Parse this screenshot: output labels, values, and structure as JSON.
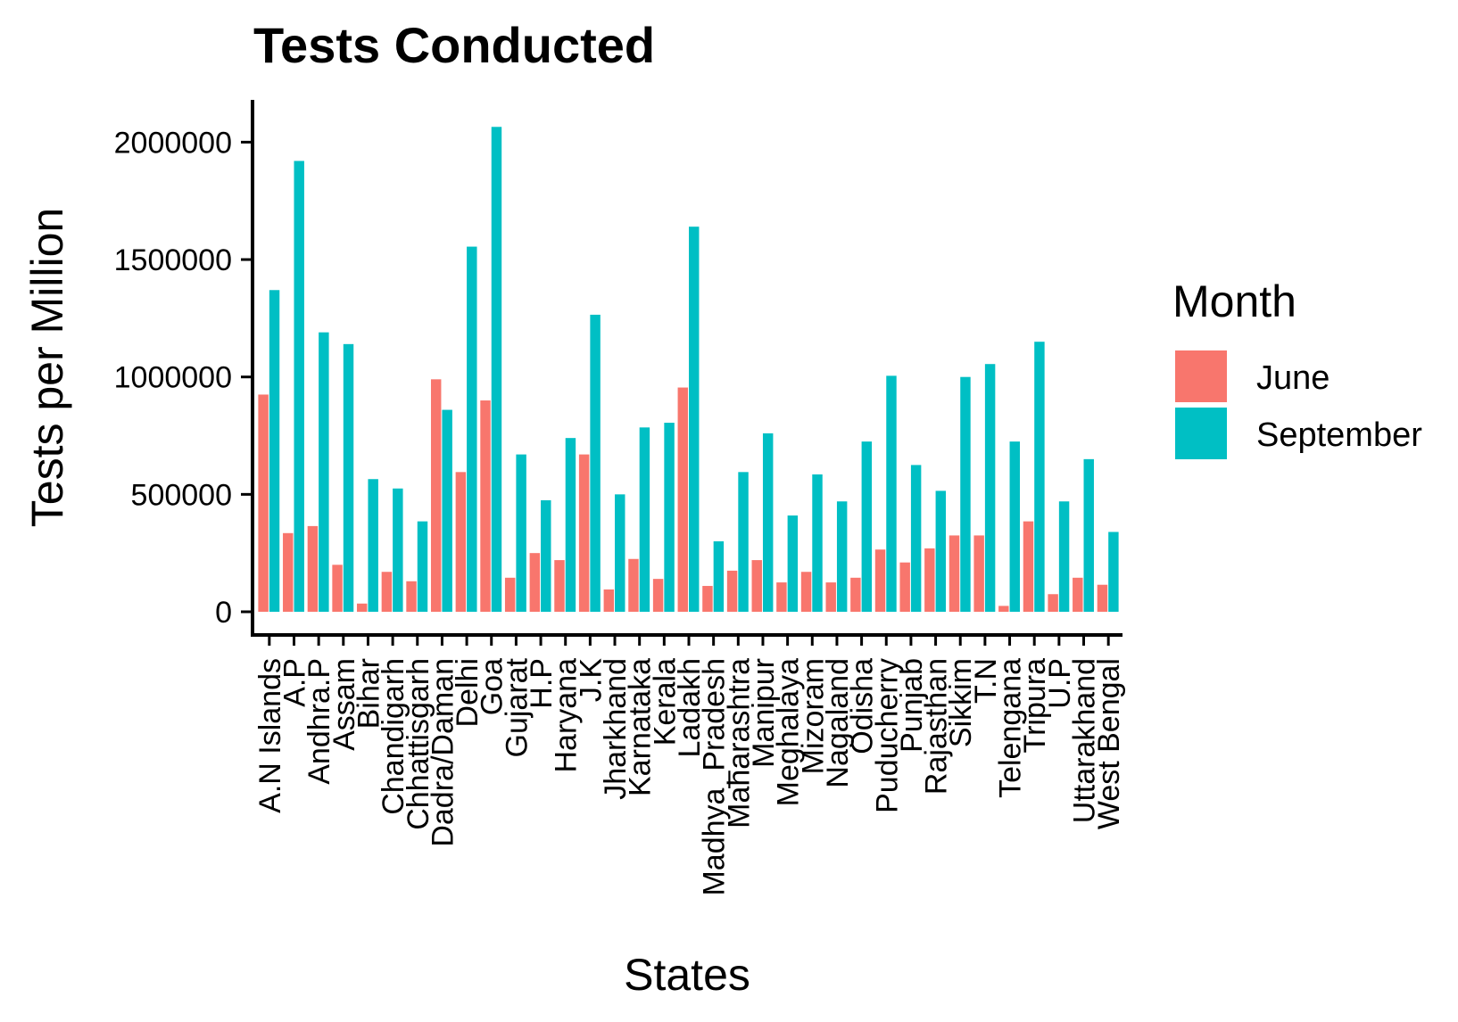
{
  "chart_data": {
    "type": "bar",
    "title": "Tests Conducted",
    "xlabel": "States",
    "ylabel": "Tests per Million",
    "ylim": [
      0,
      2180000
    ],
    "yticks": [
      0,
      500000,
      1000000,
      1500000,
      2000000
    ],
    "ytick_labels": [
      "0",
      "500000",
      "1000000",
      "1500000",
      "2000000"
    ],
    "grid": false,
    "legend": {
      "title": "Month",
      "position": "right"
    },
    "categories": [
      "A.N Islands",
      "A.P",
      "Andhra.P",
      "Assam",
      "Bihar",
      "Chandigarh",
      "Chhattisgarh",
      "Dadra/Daman",
      "Delhi",
      "Goa",
      "Gujarat",
      "H.P",
      "Haryana",
      "J.K",
      "Jharkhand",
      "Karnataka",
      "Kerala",
      "Ladakh",
      "Madhya_Pradesh",
      "Maharashtra",
      "Manipur",
      "Meghalaya",
      "Mizoram",
      "Nagaland",
      "Odisha",
      "Puducherry",
      "Punjab",
      "Rajasthan",
      "Sikkim",
      "T.N",
      "Telengana",
      "Tripura",
      "U.P",
      "Uttarakhand",
      "West Bengal"
    ],
    "series": [
      {
        "name": "June",
        "color": "#F8766D",
        "values": [
          925000,
          335000,
          365000,
          200000,
          35000,
          170000,
          130000,
          990000,
          595000,
          900000,
          145000,
          250000,
          220000,
          670000,
          95000,
          225000,
          140000,
          955000,
          110000,
          175000,
          220000,
          125000,
          170000,
          125000,
          145000,
          265000,
          210000,
          270000,
          325000,
          325000,
          25000,
          385000,
          75000,
          145000,
          115000
        ]
      },
      {
        "name": "September",
        "color": "#00BFC4",
        "values": [
          1370000,
          1920000,
          1190000,
          1140000,
          565000,
          525000,
          385000,
          860000,
          1555000,
          2065000,
          670000,
          475000,
          740000,
          1265000,
          500000,
          785000,
          805000,
          1640000,
          300000,
          595000,
          760000,
          410000,
          585000,
          470000,
          725000,
          1005000,
          625000,
          515000,
          1000000,
          1055000,
          725000,
          1150000,
          470000,
          650000,
          340000
        ]
      }
    ]
  }
}
